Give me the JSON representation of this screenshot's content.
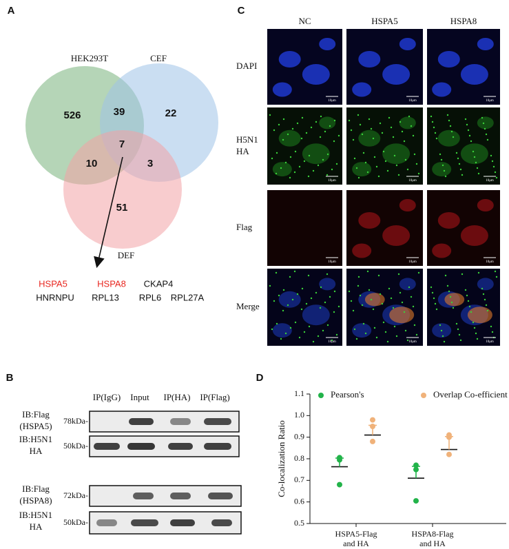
{
  "panel_a": {
    "letter": "A",
    "sets": [
      "HEK293T",
      "CEF",
      "DEF"
    ],
    "regions": {
      "hek_only": 526,
      "hek_cef": 39,
      "cef_only": 22,
      "all": 7,
      "hek_def": 10,
      "cef_def": 3,
      "def_only": 51
    },
    "genes": [
      [
        {
          "name": "HSPA5",
          "color": "#e8261f"
        },
        {
          "name": "HSPA8",
          "color": "#e8261f"
        },
        {
          "name": "CKAP4",
          "color": "#111111"
        }
      ],
      [
        {
          "name": "HNRNPU",
          "color": "#111111"
        },
        {
          "name": "RPL13",
          "color": "#111111"
        },
        {
          "name": "RPL6",
          "color": "#111111"
        },
        {
          "name": "RPL27A",
          "color": "#111111"
        }
      ]
    ]
  },
  "panel_b": {
    "letter": "B",
    "columns": [
      "IP(IgG)",
      "Input",
      "IP(HA)",
      "IP(Flag)"
    ],
    "rows": [
      {
        "label": [
          "IB:Flag",
          "(HSPA5)"
        ],
        "size": "78kDa-"
      },
      {
        "label": [
          "IB:H5N1",
          "HA"
        ],
        "size": "50kDa-"
      },
      {
        "label": [
          "IB:Flag",
          "(HSPA8)"
        ],
        "size": "72kDa-"
      },
      {
        "label": [
          "IB:H5N1",
          "HA"
        ],
        "size": "50kDa-"
      }
    ]
  },
  "panel_c": {
    "letter": "C",
    "columns": [
      "NC",
      "HSPA5",
      "HSPA8"
    ],
    "rows": [
      [
        "DAPI"
      ],
      [
        "H5N1",
        "HA"
      ],
      [
        "Flag"
      ],
      [
        "Merge"
      ]
    ],
    "scale_label": "10μm"
  },
  "chart_data": {
    "type": "scatter",
    "panel_letter": "D",
    "ylabel": "Co-localization Ratio",
    "categories": [
      [
        "HSPA5-Flag",
        "and HA"
      ],
      [
        "HSPA8-Flag",
        "and HA"
      ]
    ],
    "series": [
      {
        "name": "Pearson's",
        "color": "#22b34a",
        "values": [
          [
            0.805,
            0.795,
            0.68
          ],
          [
            0.77,
            0.75,
            0.605
          ]
        ],
        "mean": [
          0.763,
          0.71
        ],
        "error": [
          0.04,
          0.055
        ]
      },
      {
        "name": "Overlap Co-efficient",
        "color": "#f0b27a",
        "values": [
          [
            0.98,
            0.95,
            0.88
          ],
          [
            0.91,
            0.9,
            0.82
          ]
        ],
        "mean": [
          0.91,
          0.843
        ],
        "error": [
          0.045,
          0.06
        ]
      }
    ],
    "ylim": [
      0.5,
      1.1
    ],
    "yticks": [
      0.5,
      0.6,
      0.7,
      0.8,
      0.9,
      {
        "value": 1,
        "label": "1.0"
      },
      1.1
    ]
  }
}
